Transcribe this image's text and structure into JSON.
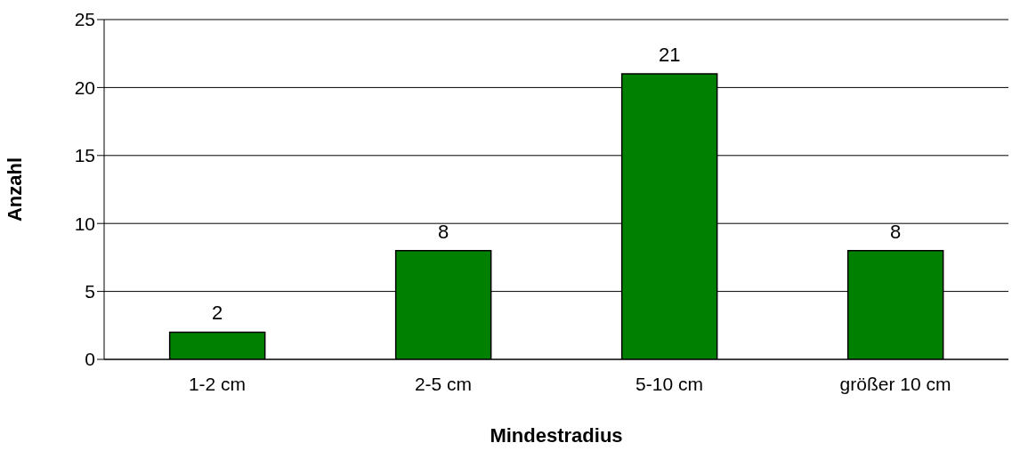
{
  "chart_data": {
    "type": "bar",
    "xlabel": "Mindestradius",
    "ylabel": "Anzahl",
    "categories": [
      "1-2 cm",
      "2-5 cm",
      "5-10 cm",
      "größer 10 cm"
    ],
    "values": [
      2,
      8,
      21,
      8
    ],
    "color": "#008000",
    "ylim": [
      0,
      25
    ],
    "yticks": [
      0,
      5,
      10,
      15,
      20,
      25
    ],
    "grid": "y",
    "data_labels": true,
    "legend": false
  }
}
